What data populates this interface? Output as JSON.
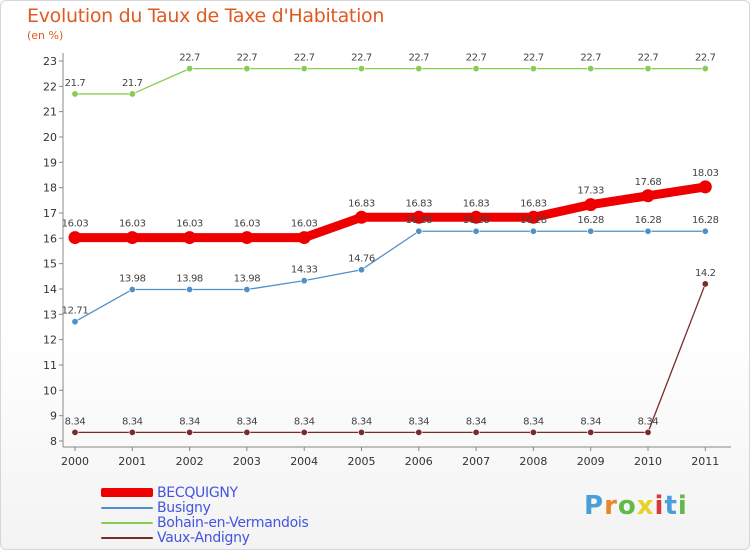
{
  "title": "Evolution du Taux de Taxe d'Habitation",
  "unit": "(en %)",
  "brand": {
    "text": "Proxiti",
    "letters": [
      "P",
      "r",
      "o",
      "x",
      "i",
      "t",
      "i"
    ],
    "colors": [
      "#4a9fd8",
      "#e8862a",
      "#62b848",
      "#e8d22a",
      "#d83a3a",
      "#4a9fd8",
      "#62b848"
    ]
  },
  "chart_data": {
    "type": "line",
    "x": [
      "2000",
      "2001",
      "2002",
      "2003",
      "2004",
      "2005",
      "2006",
      "2007",
      "2008",
      "2009",
      "2010",
      "2011"
    ],
    "yticks": [
      "8",
      "9",
      "10",
      "11",
      "12",
      "13",
      "14",
      "15",
      "16",
      "17",
      "18",
      "19",
      "20",
      "21",
      "22",
      "23"
    ],
    "ylim": [
      8,
      23
    ],
    "grid": false,
    "legend": "bottom-left",
    "series": [
      {
        "name": "BECQUIGNY",
        "color": "#ee0000",
        "values": [
          16.03,
          16.03,
          16.03,
          16.03,
          16.03,
          16.83,
          16.83,
          16.83,
          16.83,
          17.33,
          17.68,
          18.03
        ],
        "labels": [
          "16.03",
          "16.03",
          "16.03",
          "16.03",
          "16.03",
          "16.83",
          "16.83",
          "16.83",
          "16.83",
          "17.33",
          "17.68",
          "18.03"
        ]
      },
      {
        "name": "Busigny",
        "color": "#5090c8",
        "values": [
          12.71,
          13.98,
          13.98,
          13.98,
          14.33,
          14.76,
          16.28,
          16.28,
          16.28,
          16.28,
          16.28,
          16.28
        ],
        "labels": [
          "12.71",
          "13.98",
          "13.98",
          "13.98",
          "14.33",
          "14.76",
          "16.28",
          "16.28",
          "16.28",
          "16.28",
          "16.28",
          "16.28"
        ]
      },
      {
        "name": "Bohain-en-Vermandois",
        "color": "#88cc55",
        "values": [
          21.7,
          21.7,
          22.7,
          22.7,
          22.7,
          22.7,
          22.7,
          22.7,
          22.7,
          22.7,
          22.7,
          22.7
        ],
        "labels": [
          "21.7",
          "21.7",
          "22.7",
          "22.7",
          "22.7",
          "22.7",
          "22.7",
          "22.7",
          "22.7",
          "22.7",
          "22.7",
          "22.7"
        ]
      },
      {
        "name": "Vaux-Andigny",
        "color": "#7a2a2a",
        "values": [
          8.34,
          8.34,
          8.34,
          8.34,
          8.34,
          8.34,
          8.34,
          8.34,
          8.34,
          8.34,
          8.34,
          14.2
        ],
        "labels": [
          "8.34",
          "8.34",
          "8.34",
          "8.34",
          "8.34",
          "8.34",
          "8.34",
          "8.34",
          "8.34",
          "8.34",
          "8.34",
          "14.2"
        ]
      }
    ]
  }
}
